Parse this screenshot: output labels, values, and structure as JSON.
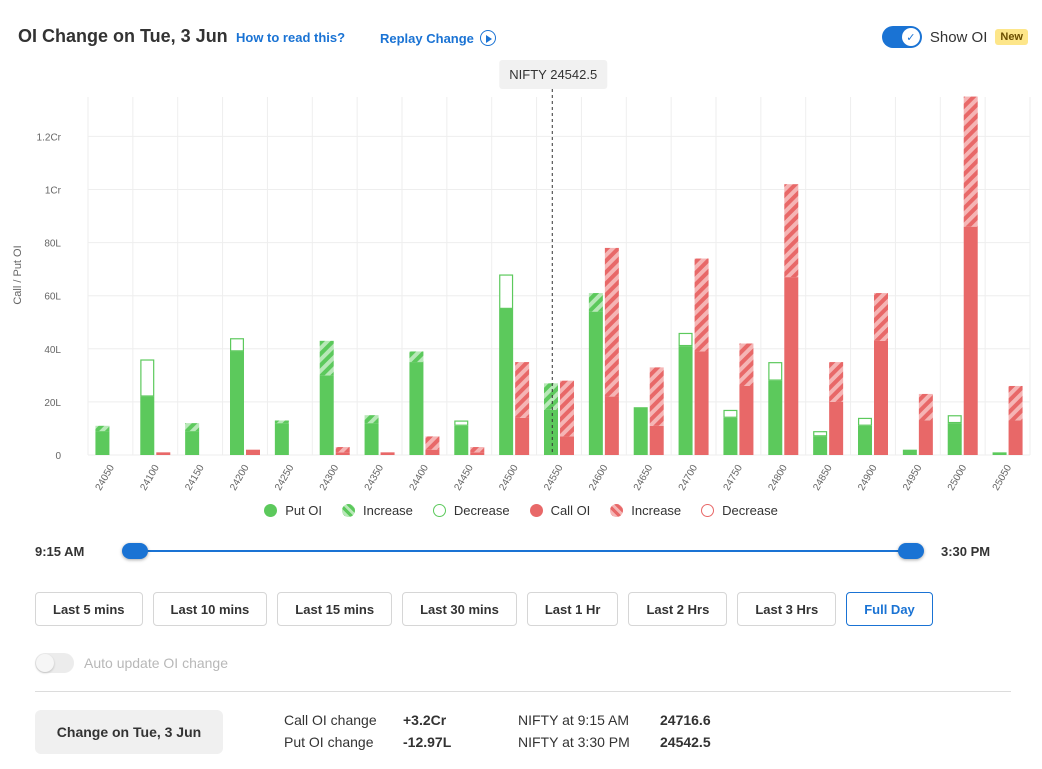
{
  "header": {
    "title": "OI Change on Tue, 3 Jun",
    "how_to_read": "How to read this?",
    "replay": "Replay Change",
    "show_oi_label": "Show OI",
    "badge": "New",
    "show_oi_on": true
  },
  "chart_data": {
    "type": "bar",
    "ylabel": "Call / Put OI",
    "yticks": [
      "0",
      "20L",
      "40L",
      "60L",
      "80L",
      "1Cr",
      "1.2Cr"
    ],
    "ylim": [
      0,
      1.35
    ],
    "units": "Cr",
    "marker": {
      "label": "NIFTY 24542.5",
      "value": 24542.5
    },
    "categories": [
      "24050",
      "24100",
      "24150",
      "24200",
      "24250",
      "24300",
      "24350",
      "24400",
      "24450",
      "24500",
      "24550",
      "24600",
      "24650",
      "24700",
      "24750",
      "24800",
      "24850",
      "24900",
      "24950",
      "25000",
      "25050"
    ],
    "series": [
      {
        "name": "Put OI",
        "values": [
          0.09,
          0.22,
          0.09,
          0.39,
          0.12,
          0.3,
          0.12,
          0.35,
          0.11,
          0.55,
          0.17,
          0.54,
          0.18,
          0.41,
          0.14,
          0.28,
          0.07,
          0.11,
          0.02,
          0.12,
          0.01
        ]
      },
      {
        "name": "Increase",
        "values": [
          0.02,
          0,
          0.03,
          0,
          0.01,
          0.13,
          0.03,
          0.04,
          0,
          0,
          0.1,
          0.07,
          0,
          0,
          0,
          0,
          0,
          0,
          0,
          0,
          0
        ]
      },
      {
        "name": "Decrease",
        "values": [
          0,
          0.14,
          0,
          0.05,
          0,
          0,
          0,
          0,
          0.02,
          0.13,
          0,
          0,
          0,
          0.05,
          0.03,
          0.07,
          0.02,
          0.03,
          0,
          0.03,
          0
        ]
      },
      {
        "name": "Call OI",
        "values": [
          0,
          0.01,
          0,
          0.02,
          0,
          0.01,
          0.01,
          0.02,
          0.01,
          0.14,
          0.07,
          0.22,
          0.11,
          0.39,
          0.26,
          0.67,
          0.2,
          0.43,
          0.13,
          0.86,
          0.13
        ]
      },
      {
        "name": "Increase",
        "values": [
          0,
          0,
          0,
          0,
          0,
          0.02,
          0,
          0.05,
          0.02,
          0.21,
          0.21,
          0.56,
          0.22,
          0.35,
          0.16,
          0.35,
          0.15,
          0.18,
          0.1,
          0.49,
          0.13
        ]
      },
      {
        "name": "Decrease",
        "values": [
          0,
          0,
          0,
          0,
          0,
          0,
          0,
          0,
          0,
          0,
          0,
          0,
          0,
          0,
          0,
          0,
          0,
          0,
          0,
          0,
          0
        ]
      }
    ]
  },
  "colors": {
    "put": "#5cc95c",
    "put_light": "#b8e8b8",
    "call": "#e86868",
    "call_light": "#f5b5b5",
    "accent": "#1a73d4"
  },
  "legend": [
    {
      "label": "Put OI",
      "style": "put-solid"
    },
    {
      "label": "Increase",
      "style": "put-hatch"
    },
    {
      "label": "Decrease",
      "style": "put-outline"
    },
    {
      "label": "Call OI",
      "style": "call-solid"
    },
    {
      "label": "Increase",
      "style": "call-hatch"
    },
    {
      "label": "Decrease",
      "style": "call-outline"
    }
  ],
  "slider": {
    "start": "9:15 AM",
    "end": "3:30 PM",
    "range": [
      0,
      1
    ]
  },
  "buttons": [
    "Last 5 mins",
    "Last 10 mins",
    "Last 15 mins",
    "Last 30 mins",
    "Last 1 Hr",
    "Last 2 Hrs",
    "Last 3 Hrs",
    "Full Day"
  ],
  "active_button": "Full Day",
  "auto_update": {
    "label": "Auto update OI change",
    "on": false
  },
  "summary": {
    "button": "Change on Tue, 3 Jun",
    "call_label": "Call OI change",
    "call_value": "+3.2Cr",
    "put_label": "Put OI change",
    "put_value": "-12.97L",
    "nifty_start_label": "NIFTY at 9:15 AM",
    "nifty_start_value": "24716.6",
    "nifty_end_label": "NIFTY at 3:30 PM",
    "nifty_end_value": "24542.5"
  }
}
